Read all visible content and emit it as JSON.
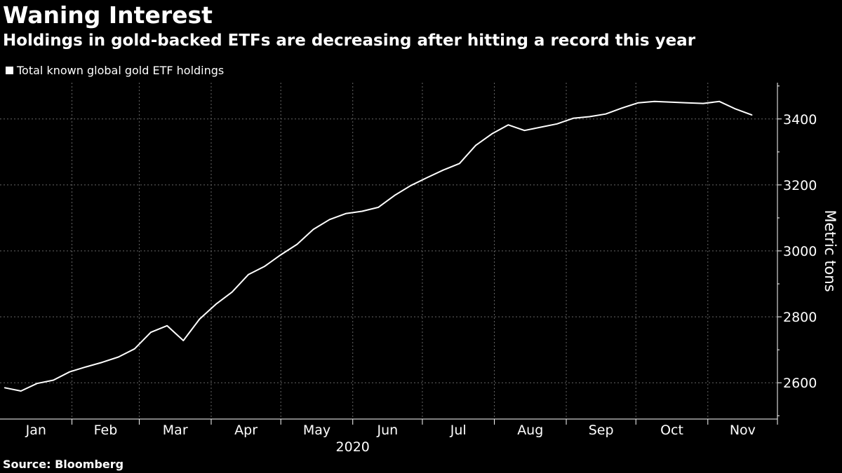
{
  "header": {
    "title": "Waning Interest",
    "subtitle": "Holdings in gold-backed ETFs are decreasing after hitting a record this year"
  },
  "footer": {
    "source": "Source: Bloomberg"
  },
  "colors": {
    "background": "#000000",
    "line": "#ffffff",
    "grid": "#666666"
  },
  "chart_data": {
    "type": "line",
    "title": "Waning Interest",
    "subtitle": "Holdings in gold-backed ETFs are decreasing after hitting a record this year",
    "xlabel": "",
    "ylabel": "Metric tons",
    "year_label": "2020",
    "ylim": [
      2490,
      3510
    ],
    "yticks": [
      2600,
      2800,
      3000,
      3200,
      3400
    ],
    "grid": true,
    "legend": "top-left",
    "months": [
      "Jan",
      "Feb",
      "Mar",
      "Apr",
      "May",
      "Jun",
      "Jul",
      "Aug",
      "Sep",
      "Oct",
      "Nov"
    ],
    "series": [
      {
        "name": "Total known global gold ETF holdings",
        "points": [
          [
            "2020-01-03",
            2585
          ],
          [
            "2020-01-10",
            2575
          ],
          [
            "2020-01-17",
            2598
          ],
          [
            "2020-01-24",
            2608
          ],
          [
            "2020-01-31",
            2633
          ],
          [
            "2020-02-07",
            2648
          ],
          [
            "2020-02-14",
            2662
          ],
          [
            "2020-02-21",
            2678
          ],
          [
            "2020-02-28",
            2703
          ],
          [
            "2020-03-06",
            2753
          ],
          [
            "2020-03-13",
            2773
          ],
          [
            "2020-03-20",
            2728
          ],
          [
            "2020-03-27",
            2793
          ],
          [
            "2020-04-03",
            2838
          ],
          [
            "2020-04-10",
            2875
          ],
          [
            "2020-04-17",
            2928
          ],
          [
            "2020-04-24",
            2953
          ],
          [
            "2020-05-01",
            2988
          ],
          [
            "2020-05-08",
            3020
          ],
          [
            "2020-05-15",
            3065
          ],
          [
            "2020-05-22",
            3095
          ],
          [
            "2020-05-29",
            3113
          ],
          [
            "2020-06-05",
            3120
          ],
          [
            "2020-06-12",
            3132
          ],
          [
            "2020-06-19",
            3168
          ],
          [
            "2020-06-26",
            3198
          ],
          [
            "2020-07-03",
            3222
          ],
          [
            "2020-07-10",
            3245
          ],
          [
            "2020-07-17",
            3265
          ],
          [
            "2020-07-24",
            3320
          ],
          [
            "2020-07-31",
            3355
          ],
          [
            "2020-08-07",
            3382
          ],
          [
            "2020-08-14",
            3365
          ],
          [
            "2020-08-21",
            3375
          ],
          [
            "2020-08-28",
            3385
          ],
          [
            "2020-09-04",
            3402
          ],
          [
            "2020-09-11",
            3407
          ],
          [
            "2020-09-18",
            3415
          ],
          [
            "2020-09-25",
            3433
          ],
          [
            "2020-10-02",
            3449
          ],
          [
            "2020-10-09",
            3453
          ],
          [
            "2020-10-16",
            3451
          ],
          [
            "2020-10-23",
            3449
          ],
          [
            "2020-10-30",
            3447
          ],
          [
            "2020-11-06",
            3453
          ],
          [
            "2020-11-13",
            3430
          ],
          [
            "2020-11-20",
            3412
          ]
        ]
      }
    ]
  }
}
